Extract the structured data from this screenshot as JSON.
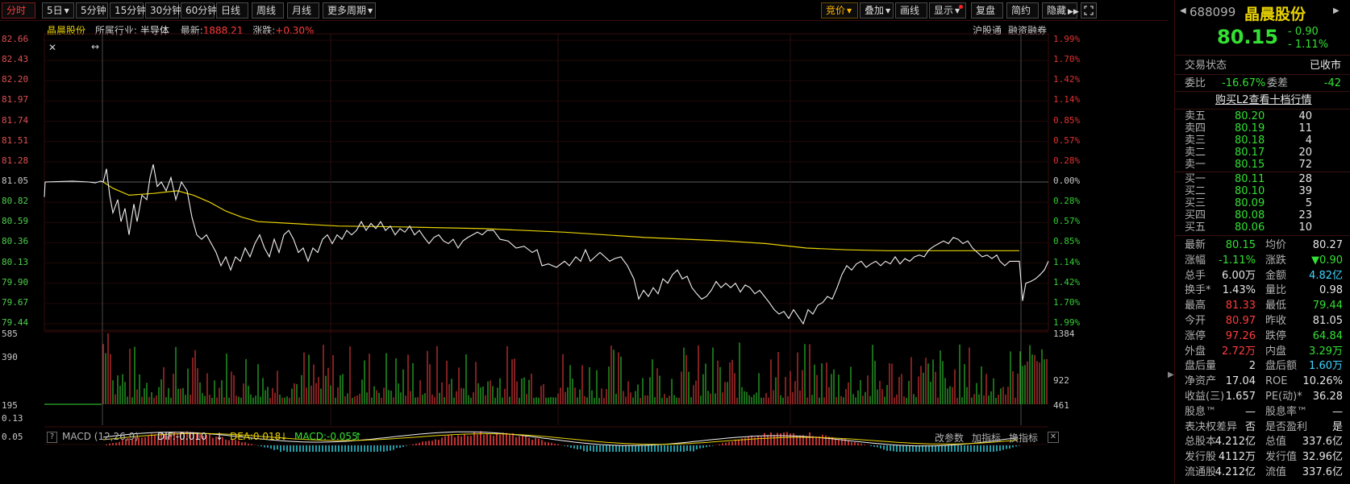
{
  "toolbar": {
    "tabs": [
      "分时",
      "5日",
      "5分钟",
      "15分钟",
      "30分钟",
      "60分钟",
      "日线",
      "周线",
      "月线",
      "更多周期"
    ],
    "right": [
      "竞价",
      "叠加",
      "画线",
      "显示",
      "复盘",
      "简约",
      "隐藏"
    ]
  },
  "info": {
    "name": "晶晨股份",
    "industry_label": "所属行业:",
    "industry": "半导体",
    "latest_label": "最新:",
    "latest": "1888.21",
    "change_label": "涨跌:",
    "change": "+0.30%",
    "hgt": "沪股通",
    "rzrq": "融资融券"
  },
  "axis": {
    "price": [
      "82.66",
      "82.43",
      "82.20",
      "81.97",
      "81.74",
      "81.51",
      "81.28",
      "81.05",
      "80.82",
      "80.59",
      "80.36",
      "80.13",
      "79.90",
      "79.67",
      "79.44"
    ],
    "pct": [
      "1.99%",
      "1.70%",
      "1.42%",
      "1.14%",
      "0.85%",
      "0.57%",
      "0.28%",
      "0.00%",
      "0.28%",
      "0.57%",
      "0.85%",
      "1.14%",
      "1.42%",
      "1.70%",
      "1.99%"
    ],
    "vol_left": [
      "585",
      "390",
      "195"
    ],
    "vol_right": [
      "1384",
      "922",
      "461"
    ],
    "macd_left": [
      "0.13",
      "0.05"
    ]
  },
  "macd": {
    "label": "MACD (12,26,9)",
    "dif": "DIF:-0.010",
    "dea": "DEA:0.018",
    "macd": "MACD:-0.055",
    "actions": [
      "改参数",
      "加指标",
      "换指标"
    ]
  },
  "quote": {
    "code": "688099",
    "name": "晶晨股份",
    "price": "80.15",
    "change": "- 0.90",
    "pct": "- 1.11%",
    "status_label": "交易状态",
    "status": "已收市",
    "wb_label": "委比",
    "wb": "-16.67%",
    "wc_label": "委差",
    "wc": "-42",
    "l2_link": "购买L2查看十档行情",
    "asks": [
      {
        "label": "卖五",
        "price": "80.20",
        "vol": "40"
      },
      {
        "label": "卖四",
        "price": "80.19",
        "vol": "11"
      },
      {
        "label": "卖三",
        "price": "80.18",
        "vol": "4"
      },
      {
        "label": "卖二",
        "price": "80.17",
        "vol": "20"
      },
      {
        "label": "卖一",
        "price": "80.15",
        "vol": "72"
      }
    ],
    "bids": [
      {
        "label": "买一",
        "price": "80.11",
        "vol": "28"
      },
      {
        "label": "买二",
        "price": "80.10",
        "vol": "39"
      },
      {
        "label": "买三",
        "price": "80.09",
        "vol": "5"
      },
      {
        "label": "买四",
        "price": "80.08",
        "vol": "23"
      },
      {
        "label": "买五",
        "price": "80.06",
        "vol": "10"
      }
    ],
    "stats": [
      [
        "最新",
        "80.15",
        "均价",
        "80.27"
      ],
      [
        "涨幅",
        "-1.11%",
        "涨跌",
        "▼0.90"
      ],
      [
        "总手",
        "6.00万",
        "金额",
        "4.82亿"
      ],
      [
        "换手*",
        "1.43%",
        "量比",
        "0.98"
      ],
      [
        "最高",
        "81.33",
        "最低",
        "79.44"
      ],
      [
        "今开",
        "80.97",
        "昨收",
        "81.05"
      ],
      [
        "涨停",
        "97.26",
        "跌停",
        "64.84"
      ],
      [
        "外盘",
        "2.72万",
        "内盘",
        "3.29万"
      ],
      [
        "盘后量",
        "2",
        "盘后额",
        "1.60万"
      ],
      [
        "净资产",
        "17.04",
        "ROE",
        "10.26%"
      ],
      [
        "收益(三)",
        "1.657",
        "PE(动)*",
        "36.28"
      ],
      [
        "股息™",
        "—",
        "股息率™",
        "—"
      ],
      [
        "表决权差异",
        "否",
        "是否盈利",
        "是"
      ],
      [
        "总股本",
        "4.212亿",
        "总值",
        "337.6亿"
      ],
      [
        "发行股",
        "4112万",
        "发行值",
        "32.96亿"
      ],
      [
        "流通股",
        "4.212亿",
        "流值",
        "337.6亿"
      ]
    ]
  }
}
